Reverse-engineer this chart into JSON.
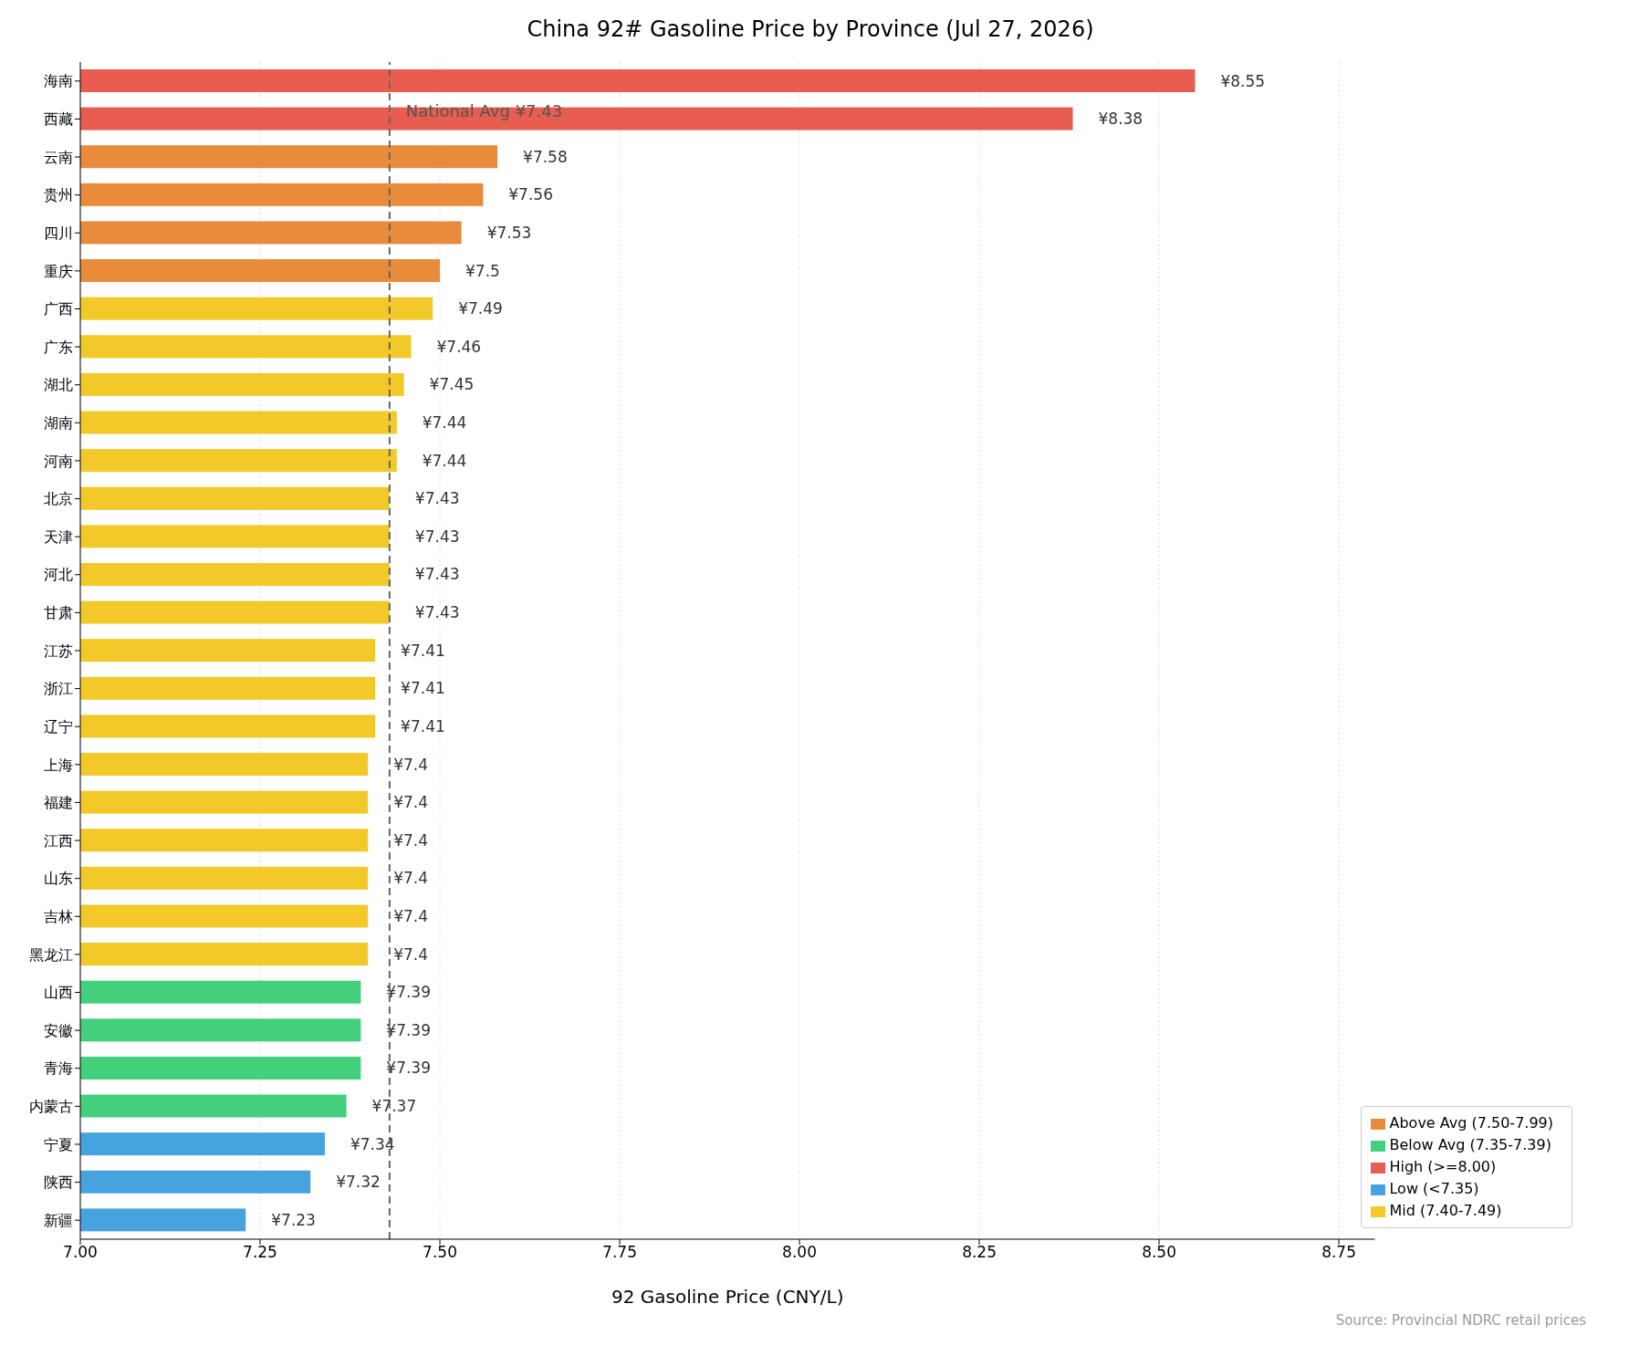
{
  "chart_data": {
    "type": "bar",
    "orientation": "horizontal",
    "stacked": true,
    "title": "China 92# Gasoline Price by Province (Jul 27, 2026)",
    "xlabel": "92 Gasoline Price (CNY/L)",
    "categories": [
      "海南",
      "西藏",
      "云南",
      "贵州",
      "四川",
      "重庆",
      "广西",
      "广东",
      "湖北",
      "湖南",
      "河南",
      "北京",
      "天津",
      "河北",
      "甘肃",
      "江苏",
      "浙江",
      "辽宁",
      "上海",
      "福建",
      "江西",
      "山东",
      "吉林",
      "黑龙江",
      "山西",
      "安徽",
      "青海",
      "内蒙古",
      "宁夏",
      "陕西",
      "新疆"
    ],
    "series": [
      {
        "name": "High (>=8.00)",
        "color": "#e85d4f",
        "values": [
          8.55,
          8.38,
          null,
          null,
          null,
          null,
          null,
          null,
          null,
          null,
          null,
          null,
          null,
          null,
          null,
          null,
          null,
          null,
          null,
          null,
          null,
          null,
          null,
          null,
          null,
          null,
          null,
          null,
          null,
          null,
          null
        ],
        "value_labels": [
          "¥8.55",
          "¥8.38",
          null,
          null,
          null,
          null,
          null,
          null,
          null,
          null,
          null,
          null,
          null,
          null,
          null,
          null,
          null,
          null,
          null,
          null,
          null,
          null,
          null,
          null,
          null,
          null,
          null,
          null,
          null,
          null,
          null
        ]
      },
      {
        "name": "Above Avg (7.50-7.99)",
        "color": "#e88b3a",
        "values": [
          null,
          null,
          7.58,
          7.56,
          7.53,
          7.5,
          null,
          null,
          null,
          null,
          null,
          null,
          null,
          null,
          null,
          null,
          null,
          null,
          null,
          null,
          null,
          null,
          null,
          null,
          null,
          null,
          null,
          null,
          null,
          null,
          null
        ],
        "value_labels": [
          null,
          null,
          "¥7.58",
          "¥7.56",
          "¥7.53",
          "¥7.5",
          null,
          null,
          null,
          null,
          null,
          null,
          null,
          null,
          null,
          null,
          null,
          null,
          null,
          null,
          null,
          null,
          null,
          null,
          null,
          null,
          null,
          null,
          null,
          null,
          null
        ]
      },
      {
        "name": "Mid (7.40-7.49)",
        "color": "#f2c928",
        "values": [
          null,
          null,
          null,
          null,
          null,
          null,
          7.49,
          7.46,
          7.45,
          7.44,
          7.44,
          7.43,
          7.43,
          7.43,
          7.43,
          7.41,
          7.41,
          7.41,
          7.4,
          7.4,
          7.4,
          7.4,
          7.4,
          7.4,
          null,
          null,
          null,
          null,
          null,
          null,
          null
        ],
        "value_labels": [
          null,
          null,
          null,
          null,
          null,
          null,
          "¥7.49",
          "¥7.46",
          "¥7.45",
          "¥7.44",
          "¥7.44",
          "¥7.43",
          "¥7.43",
          "¥7.43",
          "¥7.43",
          "¥7.41",
          "¥7.41",
          "¥7.41",
          "¥7.4",
          "¥7.4",
          "¥7.4",
          "¥7.4",
          "¥7.4",
          "¥7.4",
          null,
          null,
          null,
          null,
          null,
          null,
          null
        ]
      },
      {
        "name": "Below Avg (7.35-7.39)",
        "color": "#42d07c",
        "values": [
          null,
          null,
          null,
          null,
          null,
          null,
          null,
          null,
          null,
          null,
          null,
          null,
          null,
          null,
          null,
          null,
          null,
          null,
          null,
          null,
          null,
          null,
          null,
          null,
          7.39,
          7.39,
          7.39,
          7.37,
          null,
          null,
          null
        ],
        "value_labels": [
          null,
          null,
          null,
          null,
          null,
          null,
          null,
          null,
          null,
          null,
          null,
          null,
          null,
          null,
          null,
          null,
          null,
          null,
          null,
          null,
          null,
          null,
          null,
          null,
          "¥7.39",
          "¥7.39",
          "¥7.39",
          "¥7.37",
          null,
          null,
          null
        ]
      },
      {
        "name": "Low (<7.35)",
        "color": "#47a3de",
        "values": [
          null,
          null,
          null,
          null,
          null,
          null,
          null,
          null,
          null,
          null,
          null,
          null,
          null,
          null,
          null,
          null,
          null,
          null,
          null,
          null,
          null,
          null,
          null,
          null,
          null,
          null,
          null,
          null,
          7.34,
          7.32,
          7.23
        ],
        "value_labels": [
          null,
          null,
          null,
          null,
          null,
          null,
          null,
          null,
          null,
          null,
          null,
          null,
          null,
          null,
          null,
          null,
          null,
          null,
          null,
          null,
          null,
          null,
          null,
          null,
          null,
          null,
          null,
          null,
          "¥7.34",
          "¥7.32",
          "¥7.23"
        ]
      }
    ],
    "xlim": [
      7.0,
      8.8
    ],
    "xticks": [
      {
        "value": 7,
        "label": "7.00"
      },
      {
        "value": 7.25,
        "label": "7.25"
      },
      {
        "value": 7.5,
        "label": "7.50"
      },
      {
        "value": 7.75,
        "label": "7.75"
      },
      {
        "value": 8,
        "label": "8.00"
      },
      {
        "value": 8.25,
        "label": "8.25"
      },
      {
        "value": 8.5,
        "label": "8.50"
      },
      {
        "value": 8.75,
        "label": "8.75"
      }
    ],
    "ref_lines": [
      {
        "axis": "x",
        "value": 7.43,
        "label": "National Avg ¥7.43",
        "color": "#666666",
        "line_style": "dashed"
      }
    ],
    "grid": "x",
    "legend": "bottom right",
    "annotations": [
      "Source: Provincial NDRC retail prices"
    ]
  }
}
